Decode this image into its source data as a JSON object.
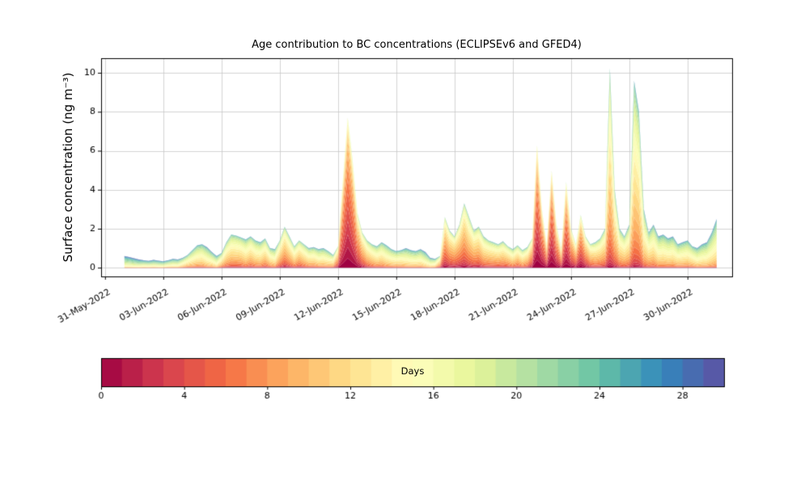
{
  "title": "Age contribution to BC concentrations (ECLIPSEv6 and GFED4)",
  "ylabel": "Surface concentration (ng m⁻³)",
  "colorbar": {
    "label": "Days",
    "min": 0,
    "max": 30,
    "ticks": [
      0,
      4,
      8,
      12,
      16,
      20,
      24,
      28
    ]
  },
  "chart_data": {
    "type": "area",
    "stacked": true,
    "colormap": "Spectral",
    "colormap_stops": [
      [
        0.0,
        "#9e0142"
      ],
      [
        0.1,
        "#d53e4f"
      ],
      [
        0.2,
        "#f46d43"
      ],
      [
        0.3,
        "#fdae61"
      ],
      [
        0.4,
        "#fee08b"
      ],
      [
        0.5,
        "#ffffbf"
      ],
      [
        0.6,
        "#e6f598"
      ],
      [
        0.7,
        "#abdda4"
      ],
      [
        0.8,
        "#66c2a5"
      ],
      [
        0.9,
        "#3288bd"
      ],
      [
        1.0,
        "#5e4fa2"
      ]
    ],
    "grid": true,
    "legend": "colorbar",
    "xlabel": "",
    "ylabel": "Surface concentration (ng m⁻³)",
    "xlim": [
      -0.2,
      32.3
    ],
    "ylim": [
      -0.45,
      10.75
    ],
    "yticks": [
      0,
      2,
      4,
      6,
      8,
      10
    ],
    "xticks": [
      {
        "t": 0,
        "label": "31-May-2022"
      },
      {
        "t": 3,
        "label": "03-Jun-2022"
      },
      {
        "t": 6,
        "label": "06-Jun-2022"
      },
      {
        "t": 9,
        "label": "09-Jun-2022"
      },
      {
        "t": 12,
        "label": "12-Jun-2022"
      },
      {
        "t": 15,
        "label": "15-Jun-2022"
      },
      {
        "t": 18,
        "label": "18-Jun-2022"
      },
      {
        "t": 21,
        "label": "21-Jun-2022"
      },
      {
        "t": 24,
        "label": "24-Jun-2022"
      },
      {
        "t": 27,
        "label": "27-Jun-2022"
      },
      {
        "t": 30,
        "label": "30-Jun-2022"
      }
    ],
    "x_unit": "days since 31-May-2022",
    "x_start": 1.0,
    "x_step": 0.25,
    "n_ages": 30,
    "age_sigma": 5.0,
    "total": [
      0.6,
      0.55,
      0.48,
      0.42,
      0.38,
      0.35,
      0.4,
      0.36,
      0.33,
      0.38,
      0.45,
      0.42,
      0.5,
      0.65,
      0.9,
      1.15,
      1.2,
      1.05,
      0.8,
      0.6,
      0.75,
      1.3,
      1.7,
      1.65,
      1.55,
      1.45,
      1.6,
      1.4,
      1.3,
      1.5,
      1.0,
      0.95,
      1.4,
      2.1,
      1.6,
      1.1,
      1.4,
      1.2,
      1.0,
      1.05,
      0.95,
      1.0,
      0.85,
      0.65,
      1.1,
      4.5,
      7.7,
      5.5,
      2.8,
      1.8,
      1.4,
      1.2,
      1.1,
      1.3,
      1.15,
      0.95,
      0.85,
      0.9,
      1.0,
      0.9,
      0.85,
      0.95,
      0.8,
      0.5,
      0.45,
      0.6,
      2.6,
      1.9,
      1.6,
      2.2,
      3.3,
      2.6,
      1.9,
      2.1,
      1.6,
      1.4,
      1.3,
      1.2,
      1.35,
      1.1,
      0.95,
      1.15,
      0.9,
      1.05,
      1.5,
      6.3,
      3.0,
      1.2,
      5.0,
      2.2,
      1.0,
      4.4,
      2.0,
      1.2,
      2.7,
      1.6,
      1.2,
      1.3,
      1.5,
      2.0,
      10.3,
      4.0,
      2.0,
      1.6,
      2.2,
      9.6,
      8.0,
      3.0,
      1.8,
      2.2,
      1.6,
      1.7,
      1.5,
      1.6,
      1.2,
      1.3,
      1.4,
      1.1,
      1.0,
      1.2,
      1.3,
      1.8,
      2.5
    ],
    "mean_age": [
      20,
      20,
      20,
      20,
      19,
      19,
      19,
      19,
      19,
      18,
      18,
      18,
      16,
      15,
      15,
      15,
      15,
      16,
      16,
      17,
      14,
      13,
      13,
      13,
      13,
      14,
      13,
      14,
      14,
      13,
      14,
      15,
      12,
      11,
      12,
      13,
      12,
      13,
      14,
      14,
      15,
      15,
      15,
      14,
      10,
      6,
      5,
      6,
      8,
      10,
      12,
      13,
      14,
      14,
      15,
      15,
      15,
      15,
      16,
      16,
      16,
      16,
      17,
      17,
      16,
      12,
      9,
      10,
      10,
      10,
      10,
      11,
      11,
      11,
      12,
      12,
      12,
      12,
      12,
      12,
      13,
      12,
      13,
      12,
      9,
      5,
      6,
      8,
      5,
      7,
      9,
      6,
      8,
      9,
      7,
      9,
      11,
      12,
      12,
      12,
      12,
      12,
      13,
      13,
      13,
      13,
      13,
      14,
      14,
      14,
      15,
      15,
      15,
      15,
      15,
      15,
      15,
      15,
      16,
      16,
      16,
      16,
      16
    ]
  }
}
